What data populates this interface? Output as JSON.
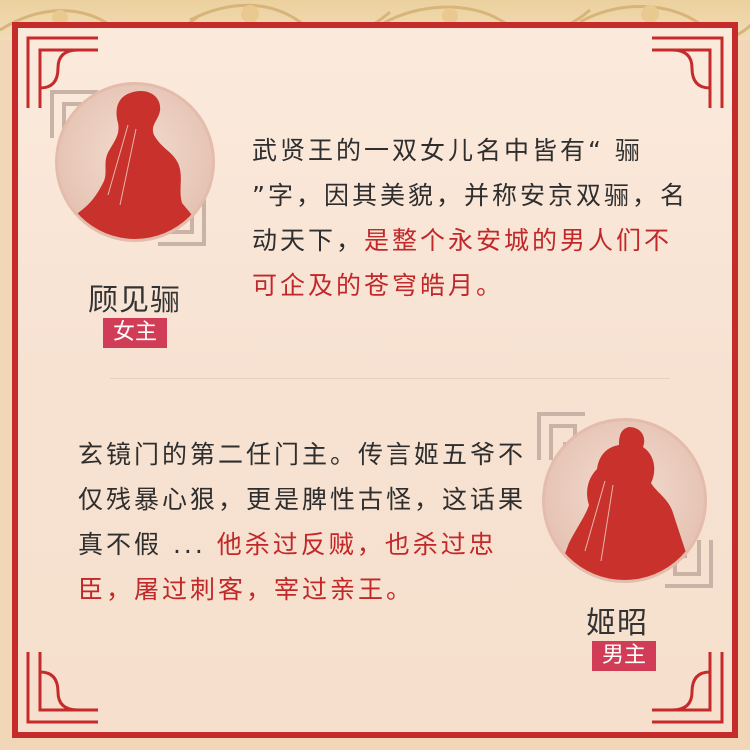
{
  "theme": {
    "accent_red": "#c42b2a",
    "tag_pink": "#d13d56",
    "highlight_red": "#c0282a",
    "text_dark": "#2e2e2e"
  },
  "heroine": {
    "name": "顾见骊",
    "role": "女主",
    "desc_plain": "武贤王的一双女儿名中皆有“ 骊 ”字，因其美貌，并称安京双骊，名动天下，",
    "desc_highlight": "是整个永安城的男人们不可企及的苍穹皓月。"
  },
  "hero": {
    "name": "姬昭",
    "role": "男主",
    "desc_plain": "玄镜门的第二任门主。传言姬五爷不仅残暴心狠，更是脾性古怪，这话果真不假 ... ",
    "desc_highlight": "他杀过反贼，也杀过忠臣，屠过刺客，宰过亲王。"
  }
}
